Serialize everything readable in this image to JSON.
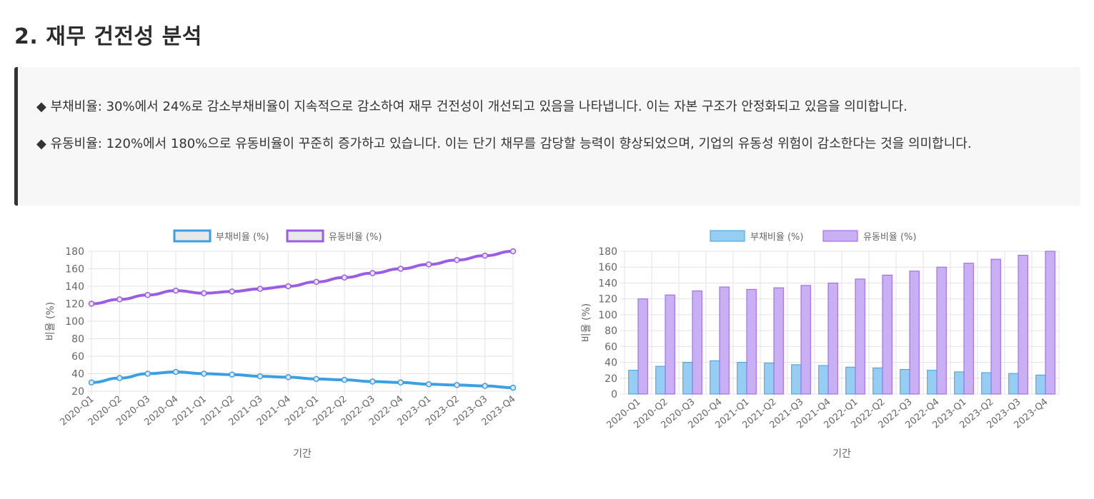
{
  "section": {
    "title": "2. 재무 건전성 분석"
  },
  "analysis": {
    "debt_text": "◆ 부채비율: 30%에서 24%로 감소부채비율이 지속적으로 감소하여 재무 건전성이 개선되고 있음을 나타냅니다. 이는 자본 구조가 안정화되고 있음을 의미합니다.",
    "current_text": "◆ 유동비율: 120%에서 180%으로 유동비율이 꾸준히 증가하고 있습니다. 이는 단기 채무를 감당할 능력이 향상되었으며, 기업의 유동성 위험이 감소한다는 것을 의미합니다."
  },
  "colors": {
    "debt": "#3b9fe3",
    "current": "#9b5de5",
    "debt_fill_bar": "#96cdf3",
    "current_fill_bar": "#c9b0f5",
    "grid": "#e3e3e3",
    "text": "#666666"
  },
  "chart_data": [
    {
      "type": "line",
      "categories": [
        "2020-Q1",
        "2020-Q2",
        "2020-Q3",
        "2020-Q4",
        "2021-Q1",
        "2021-Q2",
        "2021-Q3",
        "2021-Q4",
        "2022-Q1",
        "2022-Q2",
        "2022-Q3",
        "2022-Q4",
        "2023-Q1",
        "2023-Q2",
        "2023-Q3",
        "2023-Q4"
      ],
      "series": [
        {
          "name": "부채비율 (%)",
          "values": [
            30,
            35,
            40,
            42,
            40,
            39,
            37,
            36,
            34,
            33,
            31,
            30,
            28,
            27,
            26,
            24
          ]
        },
        {
          "name": "유동비율 (%)",
          "values": [
            120,
            125,
            130,
            135,
            132,
            134,
            137,
            140,
            145,
            150,
            155,
            160,
            165,
            170,
            175,
            180
          ]
        }
      ],
      "xlabel": "기간",
      "ylabel": "비율 (%)",
      "ylim": [
        20,
        180
      ],
      "yticks": [
        20,
        40,
        60,
        80,
        100,
        120,
        140,
        160,
        180
      ],
      "grid": true,
      "legend": "top-center"
    },
    {
      "type": "bar",
      "categories": [
        "2020-Q1",
        "2020-Q2",
        "2020-Q3",
        "2020-Q4",
        "2021-Q1",
        "2021-Q2",
        "2021-Q3",
        "2021-Q4",
        "2022-Q1",
        "2022-Q2",
        "2022-Q3",
        "2022-Q4",
        "2023-Q1",
        "2023-Q2",
        "2023-Q3",
        "2023-Q4"
      ],
      "series": [
        {
          "name": "부채비율 (%)",
          "values": [
            30,
            35,
            40,
            42,
            40,
            39,
            37,
            36,
            34,
            33,
            31,
            30,
            28,
            27,
            26,
            24
          ]
        },
        {
          "name": "유동비율 (%)",
          "values": [
            120,
            125,
            130,
            135,
            132,
            134,
            137,
            140,
            145,
            150,
            155,
            160,
            165,
            170,
            175,
            180
          ]
        }
      ],
      "xlabel": "기간",
      "ylabel": "비율 (%)",
      "ylim": [
        0,
        180
      ],
      "yticks": [
        0,
        20,
        40,
        60,
        80,
        100,
        120,
        140,
        160,
        180
      ],
      "grid": true,
      "legend": "top-center"
    }
  ]
}
